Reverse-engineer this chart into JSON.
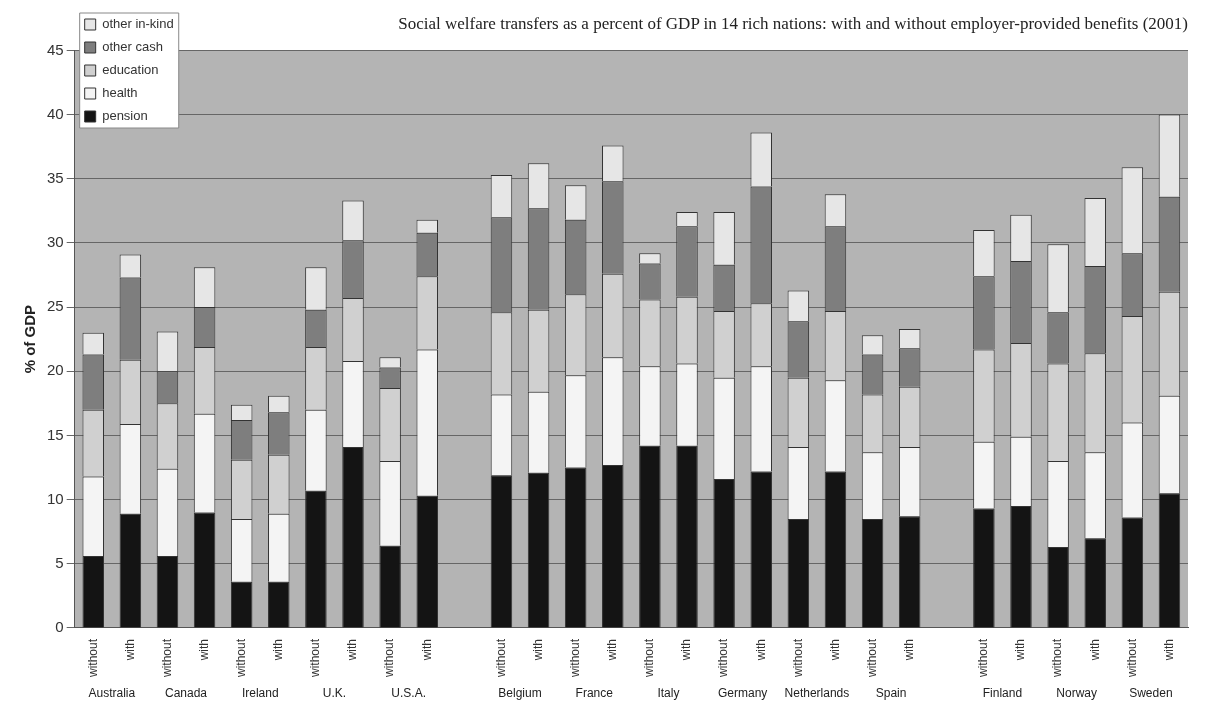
{
  "chart_data": {
    "type": "bar",
    "title": "Social welfare transfers as a percent of GDP in 14 rich nations: with and without employer-provided benefits (2001)",
    "ylabel": "% of GDP",
    "categories": [
      "without",
      "with",
      "without",
      "with",
      "without",
      "with",
      "without",
      "with",
      "without",
      "with",
      null,
      "without",
      "with",
      "without",
      "with",
      "without",
      "with",
      "without",
      "with",
      "without",
      "with",
      "without",
      "with",
      null,
      "without",
      "with",
      "without",
      "with",
      "without",
      "with"
    ],
    "annotations": [
      "Australia",
      "Canada",
      "Ireland",
      "U.K.",
      "U.S.A.",
      "Belgium",
      "France",
      "Italy",
      "Germany",
      "Netherlands",
      "Spain",
      "Finland",
      "Norway",
      "Sweden"
    ],
    "stacked": true,
    "ylim": [
      0,
      45
    ],
    "yticks": [
      0,
      5,
      10,
      15,
      20,
      25,
      30,
      35,
      40,
      45
    ],
    "grid": "y",
    "legend": "top left",
    "series": [
      {
        "name": "pension",
        "color": "#141414",
        "values": [
          5.6,
          8.9,
          5.6,
          9.0,
          3.6,
          3.6,
          10.7,
          14.1,
          6.4,
          10.3,
          null,
          11.9,
          12.1,
          12.5,
          12.7,
          14.2,
          14.2,
          11.6,
          12.2,
          8.5,
          12.2,
          8.5,
          8.7,
          null,
          9.3,
          9.5,
          6.3,
          7.0,
          8.6,
          10.5
        ]
      },
      {
        "name": "health",
        "color": "#f4f4f4",
        "values": [
          6.2,
          7.0,
          6.8,
          7.7,
          4.9,
          5.3,
          6.3,
          6.7,
          6.6,
          11.4,
          null,
          6.3,
          6.3,
          7.2,
          8.4,
          6.2,
          6.4,
          7.9,
          8.2,
          5.6,
          7.1,
          5.2,
          5.4,
          null,
          5.2,
          5.4,
          6.7,
          6.7,
          7.4,
          7.6
        ]
      },
      {
        "name": "education",
        "color": "#d0d0d0",
        "values": [
          5.2,
          5.0,
          5.1,
          5.2,
          4.6,
          4.6,
          4.9,
          4.9,
          5.7,
          5.7,
          null,
          6.4,
          6.4,
          6.3,
          6.5,
          5.2,
          5.2,
          5.2,
          4.9,
          5.4,
          5.4,
          4.5,
          4.7,
          null,
          7.2,
          7.3,
          7.6,
          7.7,
          8.3,
          8.1
        ]
      },
      {
        "name": "other cash",
        "color": "#7e7e7e",
        "values": [
          4.3,
          6.4,
          2.5,
          3.1,
          3.1,
          3.3,
          2.9,
          4.5,
          1.6,
          3.4,
          null,
          7.4,
          7.9,
          5.8,
          7.2,
          2.8,
          5.5,
          3.6,
          9.1,
          4.4,
          6.6,
          3.1,
          3.0,
          null,
          5.7,
          6.4,
          4.0,
          6.8,
          4.9,
          7.4
        ]
      },
      {
        "name": "other in-kind",
        "color": "#e6e6e6",
        "values": [
          1.7,
          1.8,
          3.1,
          3.1,
          1.2,
          1.3,
          3.3,
          3.1,
          0.8,
          1.0,
          null,
          3.3,
          3.5,
          2.7,
          2.8,
          0.8,
          1.1,
          4.1,
          4.2,
          2.4,
          2.5,
          1.5,
          1.5,
          null,
          3.6,
          3.6,
          5.3,
          5.3,
          6.7,
          6.4
        ]
      }
    ]
  }
}
